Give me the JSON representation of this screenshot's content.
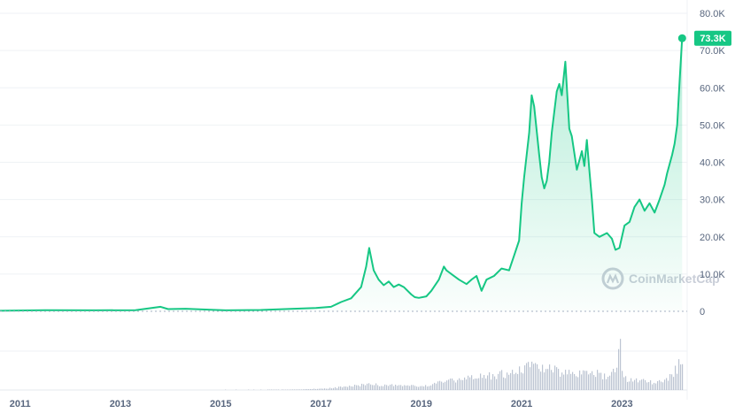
{
  "chart_data": {
    "type": "area",
    "y_ticks": [
      "80.0K",
      "70.0K",
      "60.0K",
      "50.0K",
      "40.0K",
      "30.0K",
      "20.0K",
      "10.0K",
      "0"
    ],
    "y_tick_values": [
      80000,
      70000,
      60000,
      50000,
      40000,
      30000,
      20000,
      10000,
      0
    ],
    "ylim": [
      0,
      80000
    ],
    "x_ticks": [
      "2011",
      "2013",
      "2015",
      "2017",
      "2019",
      "2021",
      "2023"
    ],
    "x_tick_values": [
      2011,
      2013,
      2015,
      2017,
      2019,
      2021,
      2023
    ],
    "xlim": [
      2010.6,
      2024.3
    ],
    "grid": true,
    "last_value_label": "73.3K",
    "watermark": "CoinMarketCap",
    "line_color": "#16c784",
    "label_bg": "#16c784",
    "price_series": {
      "x": [
        2010.6,
        2011.5,
        2012.5,
        2013.3,
        2013.8,
        2013.95,
        2014.3,
        2014.8,
        2015.1,
        2015.8,
        2016.4,
        2016.9,
        2017.2,
        2017.4,
        2017.6,
        2017.8,
        2017.9,
        2017.96,
        2018.05,
        2018.15,
        2018.25,
        2018.35,
        2018.45,
        2018.55,
        2018.65,
        2018.8,
        2018.87,
        2018.95,
        2019.1,
        2019.2,
        2019.35,
        2019.45,
        2019.5,
        2019.6,
        2019.75,
        2019.9,
        2020.0,
        2020.1,
        2020.2,
        2020.3,
        2020.45,
        2020.6,
        2020.75,
        2020.85,
        2020.95,
        2021.0,
        2021.05,
        2021.15,
        2021.2,
        2021.25,
        2021.35,
        2021.4,
        2021.45,
        2021.5,
        2021.55,
        2021.6,
        2021.7,
        2021.75,
        2021.8,
        2021.87,
        2021.95,
        2022.0,
        2022.1,
        2022.2,
        2022.25,
        2022.3,
        2022.35,
        2022.4,
        2022.45,
        2022.55,
        2022.7,
        2022.8,
        2022.87,
        2022.95,
        2023.05,
        2023.15,
        2023.25,
        2023.35,
        2023.45,
        2023.55,
        2023.65,
        2023.75,
        2023.85,
        2023.9,
        2024.0,
        2024.05,
        2024.1,
        2024.15,
        2024.2
      ],
      "y": [
        150,
        300,
        250,
        300,
        1200,
        600,
        700,
        400,
        250,
        350,
        650,
        900,
        1200,
        2500,
        3500,
        6500,
        12000,
        17000,
        11000,
        8500,
        7000,
        8000,
        6500,
        7200,
        6500,
        4500,
        3800,
        3600,
        4000,
        5500,
        8500,
        12000,
        11000,
        10000,
        8500,
        7300,
        8500,
        9500,
        5500,
        8500,
        9500,
        11500,
        11000,
        15000,
        19000,
        29000,
        36000,
        48000,
        58000,
        55000,
        42000,
        36000,
        33000,
        35000,
        40000,
        48000,
        59000,
        61000,
        58000,
        67000,
        49000,
        47000,
        38000,
        43000,
        39000,
        46000,
        38000,
        30000,
        21000,
        20000,
        21000,
        19500,
        16500,
        17000,
        23000,
        24000,
        28000,
        30000,
        27000,
        29000,
        26500,
        30000,
        34000,
        37000,
        42000,
        45000,
        50000,
        62000,
        73300
      ]
    },
    "volume_series": {
      "x": [
        2010.6,
        2013.0,
        2016.5,
        2017.2,
        2017.9,
        2018.3,
        2019.0,
        2019.5,
        2020.0,
        2020.3,
        2020.8,
        2021.0,
        2021.2,
        2021.4,
        2021.7,
        2021.9,
        2022.1,
        2022.4,
        2022.7,
        2022.85,
        2022.95,
        2023.0,
        2023.3,
        2023.6,
        2023.8,
        2024.0,
        2024.15,
        2024.2
      ],
      "y": [
        0.0,
        0.0,
        0.01,
        0.04,
        0.12,
        0.1,
        0.08,
        0.18,
        0.25,
        0.3,
        0.35,
        0.42,
        0.55,
        0.45,
        0.4,
        0.38,
        0.32,
        0.38,
        0.28,
        0.45,
        1.0,
        0.25,
        0.2,
        0.16,
        0.18,
        0.32,
        0.55,
        0.7
      ]
    }
  }
}
